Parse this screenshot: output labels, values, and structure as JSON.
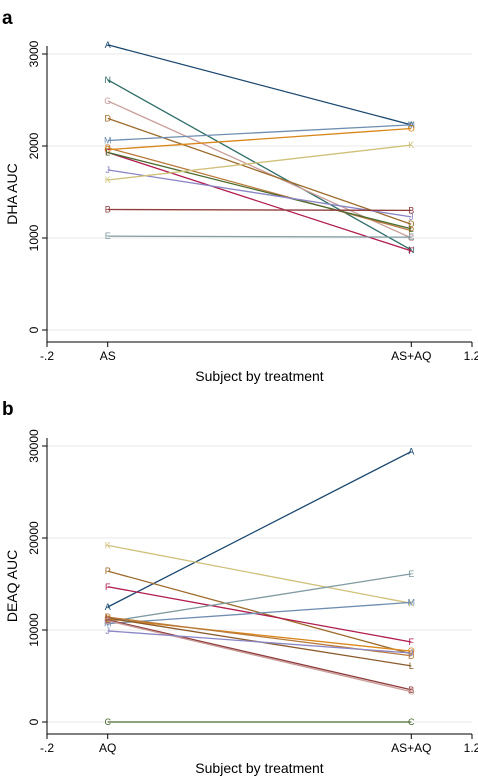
{
  "chart_data": [
    {
      "panel": "a",
      "type": "line",
      "xlabel": "Subject by treatment",
      "ylabel": "DHA AUC",
      "xlim": [
        -0.2,
        1.2
      ],
      "ylim": [
        0,
        3000
      ],
      "x_ticks": [
        {
          "value": -0.2,
          "label": "-.2"
        },
        {
          "value": 0,
          "label": "AS"
        },
        {
          "value": 1,
          "label": "AS+AQ"
        },
        {
          "value": 1.2,
          "label": "1.2"
        }
      ],
      "y_ticks": [
        {
          "value": 0,
          "label": "0"
        },
        {
          "value": 1000,
          "label": "1000"
        },
        {
          "value": 2000,
          "label": "2000"
        },
        {
          "value": 3000,
          "label": "3000"
        }
      ],
      "grid": true,
      "series": [
        {
          "name": "A",
          "color": "#1a476f",
          "values": [
            3100,
            2230
          ]
        },
        {
          "name": "N",
          "color": "#2d6d66",
          "values": [
            2720,
            870
          ]
        },
        {
          "name": "G",
          "color": "#c89d9a",
          "values": [
            2490,
            1000
          ]
        },
        {
          "name": "D",
          "color": "#9c6b2b",
          "values": [
            2300,
            1150
          ]
        },
        {
          "name": "M",
          "color": "#6e8eb0",
          "values": [
            2060,
            2230
          ]
        },
        {
          "name": "P",
          "color": "#b87a3a",
          "values": [
            1980,
            1080
          ]
        },
        {
          "name": "O",
          "color": "#d9861a",
          "values": [
            1960,
            2190
          ]
        },
        {
          "name": "F",
          "color": "#b01c4f",
          "values": [
            1930,
            860
          ]
        },
        {
          "name": "L",
          "color": "#4b6a2f",
          "values": [
            1930,
            1100
          ]
        },
        {
          "name": "J",
          "color": "#8a86c6",
          "values": [
            1740,
            1230
          ]
        },
        {
          "name": "K",
          "color": "#cfc07a",
          "values": [
            1630,
            2010
          ]
        },
        {
          "name": "B",
          "color": "#903c3c",
          "values": [
            1310,
            1300
          ]
        },
        {
          "name": "E",
          "color": "#7f9aa0",
          "values": [
            1020,
            1010
          ]
        }
      ]
    },
    {
      "panel": "b",
      "type": "line",
      "xlabel": "Subject by treatment",
      "ylabel": "DEAQ AUC",
      "xlim": [
        -0.2,
        1.2
      ],
      "ylim": [
        0,
        30000
      ],
      "x_ticks": [
        {
          "value": -0.2,
          "label": "-.2"
        },
        {
          "value": 0,
          "label": "AQ"
        },
        {
          "value": 1,
          "label": "AS+AQ"
        },
        {
          "value": 1.2,
          "label": "1.2"
        }
      ],
      "y_ticks": [
        {
          "value": 0,
          "label": "0"
        },
        {
          "value": 10000,
          "label": "10000"
        },
        {
          "value": 20000,
          "label": "20000"
        },
        {
          "value": 30000,
          "label": "30000"
        }
      ],
      "grid": true,
      "series": [
        {
          "name": "A",
          "color": "#1a476f",
          "values": [
            12500,
            29400
          ]
        },
        {
          "name": "K",
          "color": "#cfc07a",
          "values": [
            19200,
            12900
          ]
        },
        {
          "name": "P",
          "color": "#9c6b2b",
          "values": [
            16400,
            7400
          ]
        },
        {
          "name": "F",
          "color": "#b01c4f",
          "values": [
            14700,
            8700
          ]
        },
        {
          "name": "E",
          "color": "#7f9aa0",
          "values": [
            10900,
            16100
          ]
        },
        {
          "name": "M",
          "color": "#6e8eb0",
          "values": [
            10700,
            13000
          ]
        },
        {
          "name": "O",
          "color": "#d9861a",
          "values": [
            11200,
            7700
          ]
        },
        {
          "name": "D",
          "color": "#b87a3a",
          "values": [
            11400,
            7200
          ]
        },
        {
          "name": "L",
          "color": "#8b5a2b",
          "values": [
            11300,
            6100
          ]
        },
        {
          "name": "B",
          "color": "#903c3c",
          "values": [
            11100,
            3500
          ]
        },
        {
          "name": "G",
          "color": "#c89d9a",
          "values": [
            11000,
            3300
          ]
        },
        {
          "name": "J",
          "color": "#8a86c6",
          "values": [
            9900,
            7500
          ]
        },
        {
          "name": "C",
          "color": "#4b6a2f",
          "values": [
            0,
            0
          ]
        }
      ]
    }
  ]
}
